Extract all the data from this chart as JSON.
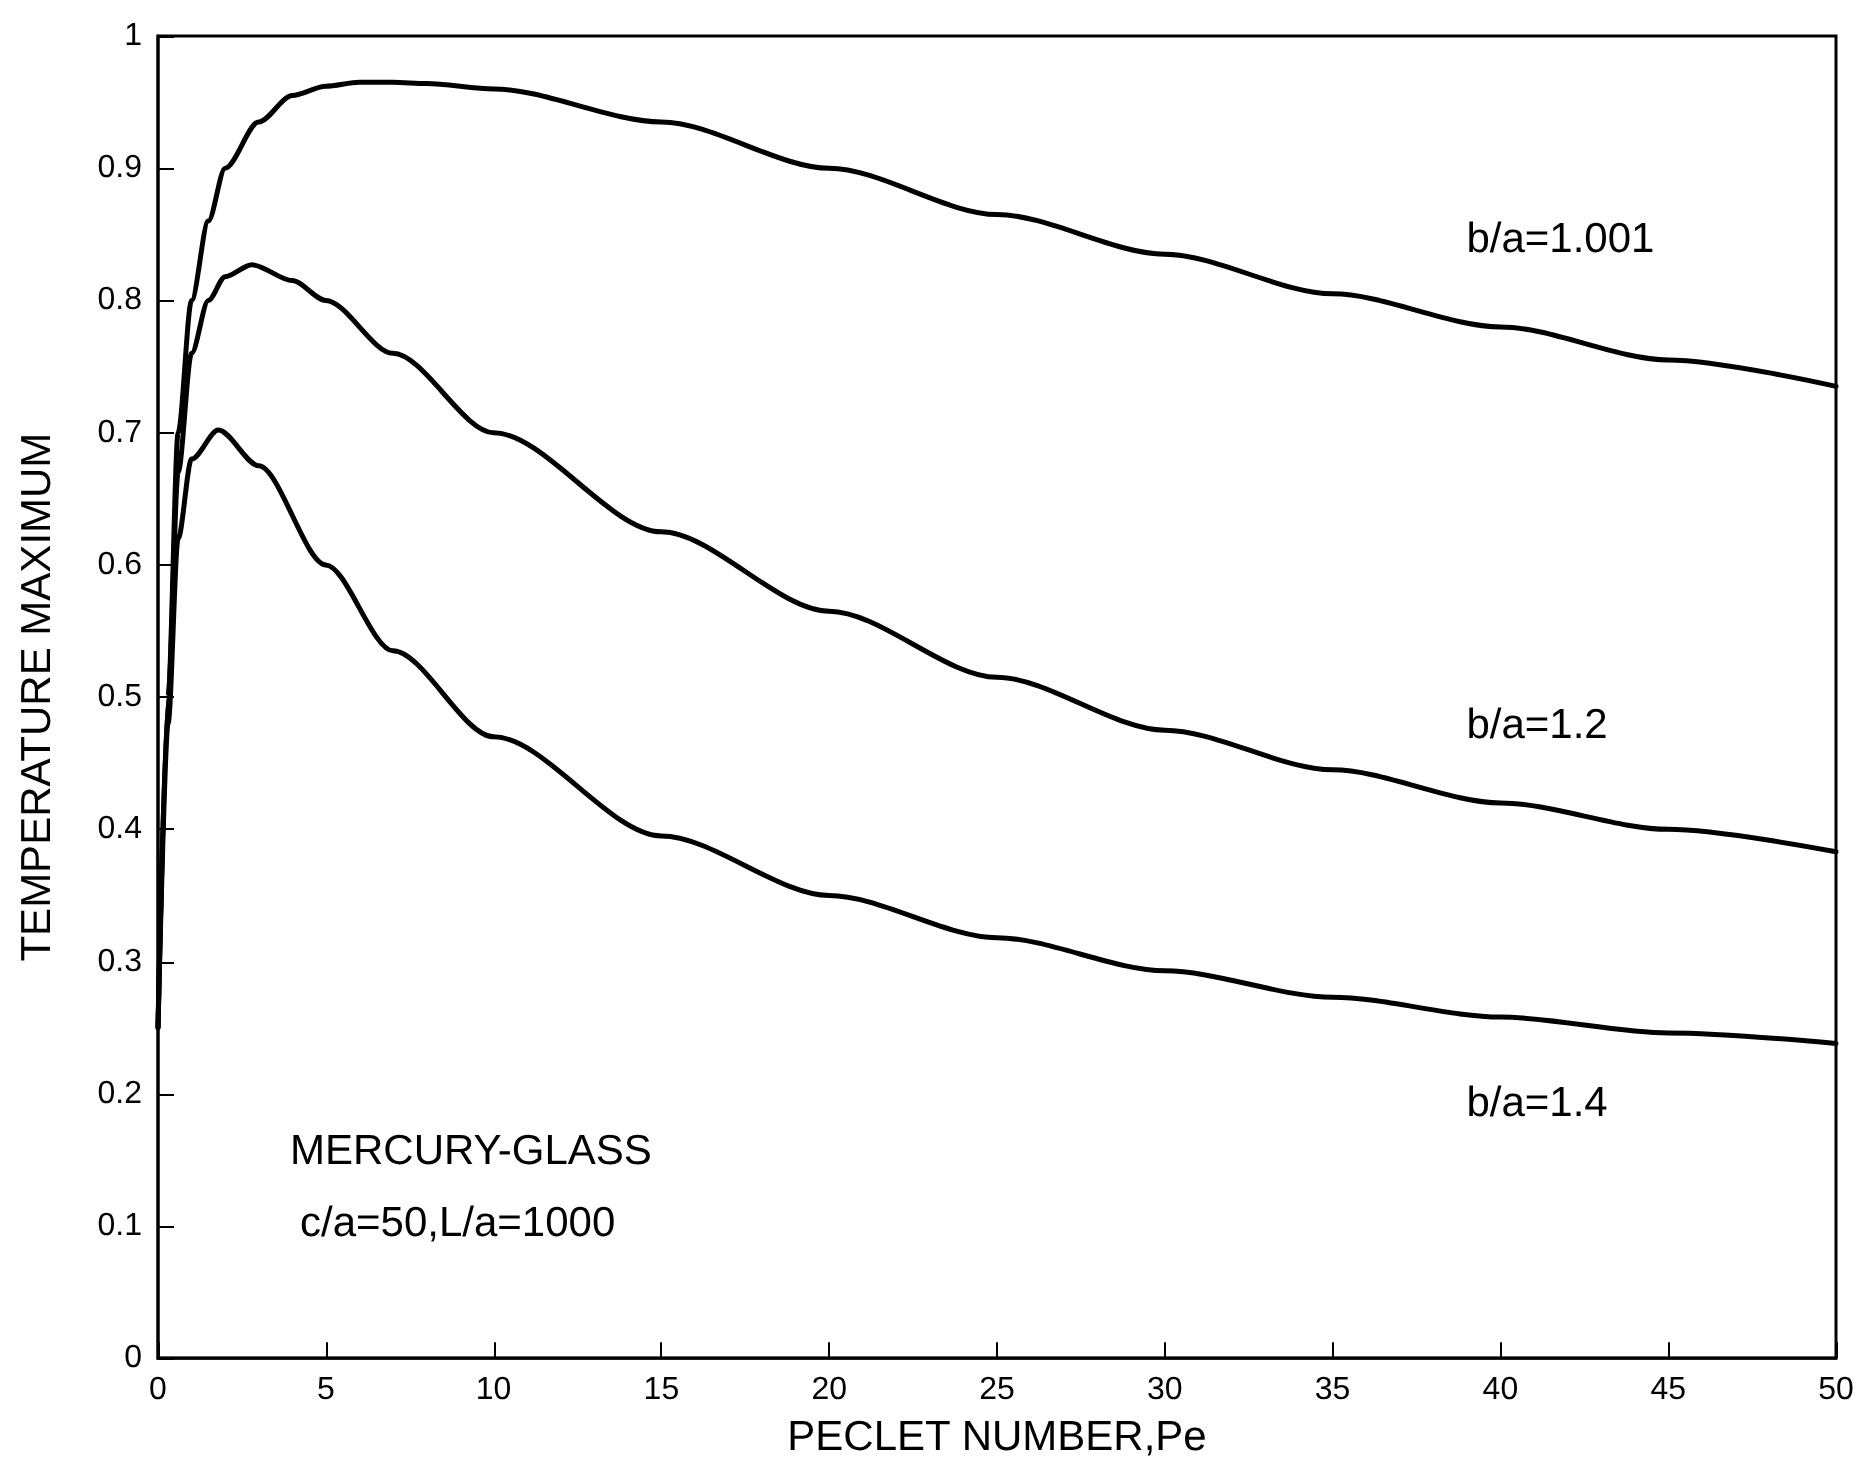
{
  "chart_data": {
    "type": "line",
    "xlabel": "PECLET NUMBER,Pe",
    "ylabel": "TEMPERATURE MAXIMUM",
    "xlim": [
      0,
      50
    ],
    "xticks": [
      0,
      5,
      10,
      15,
      20,
      25,
      30,
      35,
      40,
      45,
      50
    ],
    "ylim": [
      0,
      1
    ],
    "yticks": [
      0,
      0.1,
      0.2,
      0.3,
      0.4,
      0.5,
      0.6,
      0.7,
      0.8,
      0.9,
      1
    ],
    "grid": false,
    "legend": false,
    "marker": "none",
    "line_style": "solid",
    "series": [
      {
        "name": "b/a=1.001",
        "color": "#000000",
        "x": [
          0,
          0.3,
          0.6,
          1,
          1.5,
          2,
          3,
          4,
          5,
          6,
          7,
          8,
          10,
          15,
          20,
          25,
          30,
          35,
          40,
          45,
          50
        ],
        "values": [
          0.25,
          0.5,
          0.7,
          0.8,
          0.86,
          0.9,
          0.935,
          0.955,
          0.962,
          0.965,
          0.965,
          0.964,
          0.96,
          0.935,
          0.9,
          0.865,
          0.835,
          0.805,
          0.78,
          0.755,
          0.735
        ]
      },
      {
        "name": "b/a=1.2",
        "color": "#000000",
        "x": [
          0,
          0.3,
          0.6,
          1,
          1.5,
          2,
          2.8,
          4,
          5,
          7,
          10,
          15,
          20,
          25,
          30,
          35,
          40,
          45,
          50
        ],
        "values": [
          0.25,
          0.5,
          0.67,
          0.76,
          0.8,
          0.818,
          0.827,
          0.815,
          0.8,
          0.76,
          0.7,
          0.625,
          0.565,
          0.515,
          0.475,
          0.445,
          0.42,
          0.4,
          0.383
        ]
      },
      {
        "name": "b/a=1.4",
        "color": "#000000",
        "x": [
          0,
          0.3,
          0.6,
          1,
          1.8,
          3,
          5,
          7,
          10,
          15,
          20,
          25,
          30,
          35,
          40,
          45,
          50
        ],
        "values": [
          0.25,
          0.48,
          0.62,
          0.68,
          0.702,
          0.675,
          0.6,
          0.535,
          0.47,
          0.395,
          0.35,
          0.318,
          0.293,
          0.273,
          0.258,
          0.246,
          0.238
        ]
      }
    ],
    "annotations": [
      "MERCURY-GLASS",
      "c/a=50,L/a=1000"
    ]
  }
}
